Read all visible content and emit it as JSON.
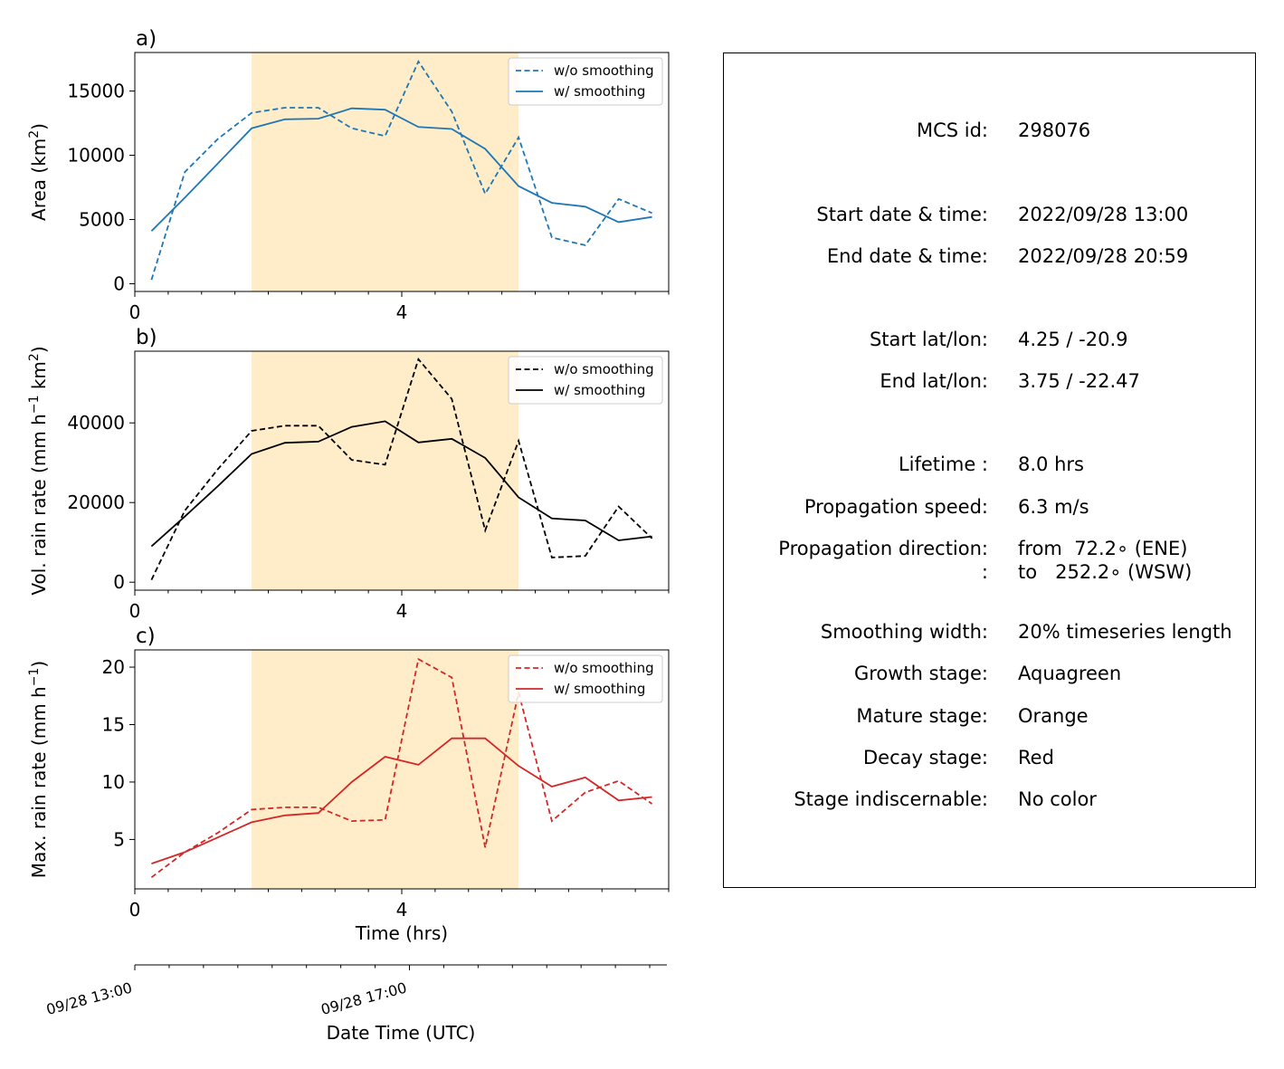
{
  "chart_data": [
    {
      "type": "line",
      "panel_label": "a)",
      "ylabel": "Area  (km",
      "ylabel_sup": "2",
      "ylabel_end": ")",
      "xlim": [
        0,
        8
      ],
      "ylim": [
        -600,
        18000
      ],
      "yticks": [
        0,
        5000,
        10000,
        15000
      ],
      "xticks": [
        0,
        4
      ],
      "shaded_range": [
        1.75,
        5.75
      ],
      "color": "#1f77b4",
      "legend": {
        "position": "top-right",
        "entries": [
          "w/o smoothing",
          "w/ smoothing"
        ]
      },
      "series": [
        {
          "name": "w/o smoothing",
          "style": "dashed",
          "x": [
            0.25,
            0.75,
            1.25,
            1.75,
            2.25,
            2.75,
            3.25,
            3.75,
            4.25,
            4.75,
            5.25,
            5.75,
            6.25,
            6.75,
            7.25,
            7.75
          ],
          "y": [
            300,
            8700,
            11300,
            13300,
            13700,
            13700,
            12100,
            11500,
            17300,
            13400,
            7000,
            11400,
            3600,
            3000,
            6600,
            5500
          ]
        },
        {
          "name": "w/ smoothing",
          "style": "solid",
          "x": [
            0.25,
            0.75,
            1.25,
            1.75,
            2.25,
            2.75,
            3.25,
            3.75,
            4.25,
            4.75,
            5.25,
            5.75,
            6.25,
            6.75,
            7.25,
            7.75
          ],
          "y": [
            4100,
            6700,
            9400,
            12100,
            12800,
            12850,
            13650,
            13550,
            12200,
            12050,
            10500,
            7600,
            6300,
            6000,
            4800,
            5200
          ]
        }
      ]
    },
    {
      "type": "line",
      "panel_label": "b)",
      "ylabel": "Vol. rain rate (mm h",
      "ylabel_sup": "−1",
      "ylabel_mid": " km",
      "ylabel_sup2": "2",
      "ylabel_end": ")",
      "xlim": [
        0,
        8
      ],
      "ylim": [
        -2000,
        58000
      ],
      "yticks": [
        0,
        20000,
        40000
      ],
      "xticks": [
        0,
        4
      ],
      "shaded_range": [
        1.75,
        5.75
      ],
      "color": "#000000",
      "legend": {
        "position": "top-right",
        "entries": [
          "w/o smoothing",
          "w/ smoothing"
        ]
      },
      "series": [
        {
          "name": "w/o smoothing",
          "style": "dashed",
          "x": [
            0.25,
            0.75,
            1.25,
            1.75,
            2.25,
            2.75,
            3.25,
            3.75,
            4.25,
            4.75,
            5.25,
            5.75,
            6.25,
            6.75,
            7.25,
            7.75
          ],
          "y": [
            600,
            18000,
            28500,
            38000,
            39300,
            39300,
            30700,
            29500,
            56000,
            46000,
            13000,
            35500,
            6200,
            6600,
            19000,
            11000
          ]
        },
        {
          "name": "w/ smoothing",
          "style": "solid",
          "x": [
            0.25,
            0.75,
            1.25,
            1.75,
            2.25,
            2.75,
            3.25,
            3.75,
            4.25,
            4.75,
            5.25,
            5.75,
            6.25,
            6.75,
            7.25,
            7.75
          ],
          "y": [
            9000,
            16500,
            24200,
            32200,
            35000,
            35300,
            39000,
            40400,
            35100,
            36000,
            31200,
            21300,
            16000,
            15500,
            10500,
            11500
          ]
        }
      ]
    },
    {
      "type": "line",
      "panel_label": "c)",
      "ylabel": "Max. rain rate  (mm h",
      "ylabel_sup": "−1",
      "ylabel_end": ")",
      "xlim": [
        0,
        8
      ],
      "ylim": [
        0.7,
        21.5
      ],
      "yticks": [
        5,
        10,
        15,
        20
      ],
      "xticks": [
        0,
        4
      ],
      "xlabel": "Time (hrs)",
      "shaded_range": [
        1.75,
        5.75
      ],
      "color": "#d62728",
      "legend": {
        "position": "top-right",
        "entries": [
          "w/o smoothing",
          "w/ smoothing"
        ]
      },
      "series": [
        {
          "name": "w/o smoothing",
          "style": "dashed",
          "x": [
            0.25,
            0.75,
            1.25,
            1.75,
            2.25,
            2.75,
            3.25,
            3.75,
            4.25,
            4.75,
            5.25,
            5.75,
            6.25,
            6.75,
            7.25,
            7.75
          ],
          "y": [
            1.7,
            3.9,
            5.6,
            7.6,
            7.8,
            7.8,
            6.6,
            6.7,
            20.7,
            19.1,
            4.3,
            17.8,
            6.6,
            9.1,
            10.1,
            8.1
          ]
        },
        {
          "name": "w/ smoothing",
          "style": "solid",
          "x": [
            0.25,
            0.75,
            1.25,
            1.75,
            2.25,
            2.75,
            3.25,
            3.75,
            4.25,
            4.75,
            5.25,
            5.75,
            6.25,
            6.75,
            7.25,
            7.75
          ],
          "y": [
            2.9,
            3.9,
            5.2,
            6.5,
            7.1,
            7.3,
            10.0,
            12.2,
            11.5,
            13.8,
            13.8,
            11.4,
            9.6,
            10.4,
            8.4,
            8.7
          ]
        }
      ]
    }
  ],
  "datetime_axis": {
    "label": "Date Time (UTC)",
    "ticks": [
      {
        "t": 0,
        "label": "09/28 13:00"
      },
      {
        "t": 4,
        "label": "09/28 17:00"
      }
    ]
  },
  "info": [
    {
      "label": "MCS id:",
      "value": "298076"
    },
    {
      "label": "Start date & time:",
      "value": "2022/09/28 13:00"
    },
    {
      "label": "End date & time:",
      "value": "2022/09/28 20:59"
    },
    {
      "label": "Start lat/lon:",
      "value": "4.25 / -20.9"
    },
    {
      "label": "End lat/lon:",
      "value": "3.75 / -22.47"
    },
    {
      "label": "Lifetime :",
      "value": "8.0 hrs"
    },
    {
      "label": "Propagation speed:",
      "value": "6.3 m/s"
    },
    {
      "label": "Propagation direction:",
      "value": "from  72.2∘ (ENE)"
    },
    {
      "label": ":",
      "value": "to   252.2∘ (WSW)"
    },
    {
      "label": "Smoothing width:",
      "value": "20% timeseries length"
    },
    {
      "label": "Growth stage:",
      "value": "Aquagreen"
    },
    {
      "label": "Mature stage:",
      "value": "Orange"
    },
    {
      "label": "Decay stage:",
      "value": "Red"
    },
    {
      "label": "Stage indiscernable:",
      "value": "No color"
    }
  ],
  "colors": {
    "mature_shading": "#ffecc8"
  }
}
